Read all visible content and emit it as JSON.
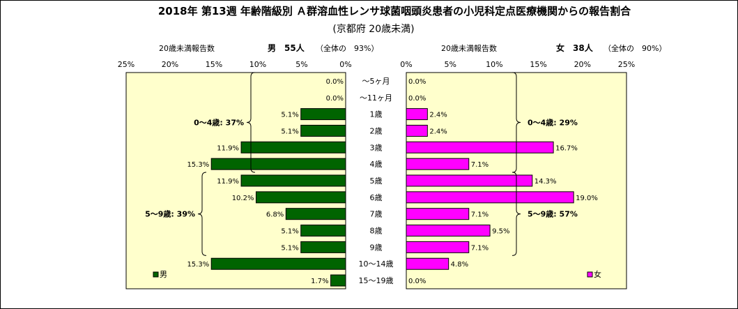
{
  "colors": {
    "panel_bg": "#ffffcc",
    "male_bar": "#006400",
    "female_bar": "#ff00ff",
    "bar_edge": "#000000",
    "frame": "#000000"
  },
  "header": {
    "left_caption": "20歳未満報告数",
    "left_total": "男　55人",
    "left_share": "（全体の　93%）",
    "right_caption": "20歳未満報告数",
    "right_total": "女　38人",
    "right_share": "（全体の　90%）"
  },
  "chart_data": {
    "type": "bar",
    "orientation": "horizontal",
    "title": "2018年 第13週 年齢階級別 Ａ群溶血性レンサ球菌咽頭炎患者の小児科定点医療機関からの報告割合",
    "subtitle": "(京都府 20歳未満)",
    "categories": [
      "～5ヶ月",
      "～11ヶ月",
      "1歳",
      "2歳",
      "3歳",
      "4歳",
      "5歳",
      "6歳",
      "7歳",
      "8歳",
      "9歳",
      "10～14歳",
      "15～19歳"
    ],
    "xlim": [
      0,
      25
    ],
    "grid": false,
    "series": [
      {
        "name": "男",
        "side": "left",
        "values": [
          0.0,
          0.0,
          5.1,
          5.1,
          11.9,
          15.3,
          11.9,
          10.2,
          6.8,
          5.1,
          5.1,
          15.3,
          1.7
        ],
        "labels": [
          "0.0%",
          "0.0%",
          "5.1%",
          "5.1%",
          "11.9%",
          "15.3%",
          "11.9%",
          "10.2%",
          "6.8%",
          "5.1%",
          "5.1%",
          "15.3%",
          "1.7%"
        ],
        "ticks": [
          "25%",
          "20%",
          "15%",
          "10%",
          "5%",
          "0%"
        ],
        "legend_position": "bottom-left"
      },
      {
        "name": "女",
        "side": "right",
        "values": [
          0.0,
          0.0,
          2.4,
          2.4,
          16.7,
          7.1,
          14.3,
          19.0,
          7.1,
          9.5,
          7.1,
          4.8,
          0.0
        ],
        "labels": [
          "0.0%",
          "0.0%",
          "2.4%",
          "2.4%",
          "16.7%",
          "7.1%",
          "14.3%",
          "19.0%",
          "7.1%",
          "9.5%",
          "7.1%",
          "4.8%",
          "0.0%"
        ],
        "ticks": [
          "0%",
          "5%",
          "10%",
          "15%",
          "20%",
          "25%"
        ],
        "legend_position": "bottom-right"
      }
    ],
    "annotations": [
      {
        "side": "left",
        "text": "0～4歳: 37%",
        "from": 0,
        "to": 5
      },
      {
        "side": "left",
        "text": "5～9歳: 39%",
        "from": 6,
        "to": 10
      },
      {
        "side": "right",
        "text": "0～4歳: 29%",
        "from": 0,
        "to": 5
      },
      {
        "side": "right",
        "text": "5～9歳: 57%",
        "from": 6,
        "to": 10
      }
    ]
  }
}
